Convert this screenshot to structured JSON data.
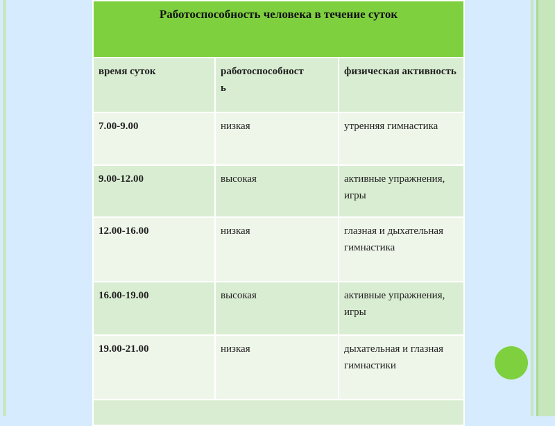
{
  "title": "Работоспособность человека в течение суток",
  "headers": [
    "время суток",
    "работоспособность",
    "физическая активность"
  ],
  "rows": [
    {
      "time": "7.00-9.00",
      "capacity": "низкая",
      "activity": "утренняя гимнастика"
    },
    {
      "time": "9.00-12.00",
      "capacity": "высокая",
      "activity": "активные упражнения, игры"
    },
    {
      "time": "12.00-16.00",
      "capacity": "низкая",
      "activity": "глазная и дыхательная гимнастика"
    },
    {
      "time": "16.00-19.00",
      "capacity": "высокая",
      "activity": "активные упражнения, игры"
    },
    {
      "time": "19.00-21.00",
      "capacity": "низкая",
      "activity": "дыхательная и глазная гимнастики"
    }
  ],
  "colors": {
    "accent": "#7ed03f",
    "background": "#d6ebfd",
    "row_dark": "#d9edd2",
    "row_light": "#eef6e9"
  }
}
